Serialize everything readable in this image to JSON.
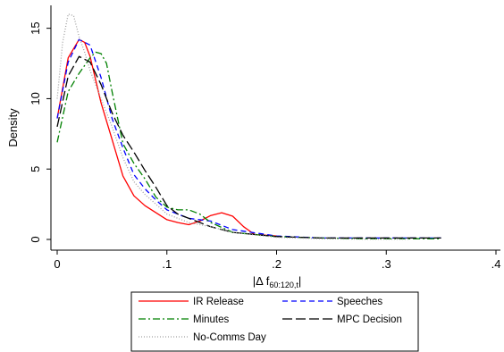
{
  "chart_data": {
    "type": "line",
    "title": "",
    "xlabel": "|Δ f",
    "xlabel_subscript": "60:120,t",
    "xlabel_close": "|",
    "ylabel": "Density",
    "xlim": [
      0,
      0.4
    ],
    "ylim": [
      0,
      16.5
    ],
    "xticks": [
      0,
      0.1,
      0.2,
      0.3,
      0.4
    ],
    "xtick_labels": [
      "0",
      ".1",
      ".2",
      ".3",
      ".4"
    ],
    "yticks": [
      0,
      5,
      10,
      15
    ],
    "ytick_labels": [
      "0",
      "5",
      "10",
      "15"
    ],
    "grid": false,
    "legend_position": "bottom",
    "series": [
      {
        "name": "IR Release",
        "color": "#ff0000",
        "dash": "solid",
        "x": [
          0.0,
          0.01,
          0.02,
          0.025,
          0.03,
          0.04,
          0.05,
          0.06,
          0.07,
          0.08,
          0.09,
          0.1,
          0.11,
          0.12,
          0.13,
          0.14,
          0.15,
          0.16,
          0.17,
          0.18,
          0.19,
          0.2
        ],
        "y": [
          8.6,
          12.9,
          14.2,
          14.0,
          13.0,
          9.7,
          7.1,
          4.5,
          3.1,
          2.4,
          1.9,
          1.4,
          1.2,
          1.05,
          1.3,
          1.7,
          1.9,
          1.65,
          0.9,
          0.35,
          0.3,
          0.25
        ]
      },
      {
        "name": "Speeches",
        "color": "#0000ff",
        "dash": "dash",
        "x": [
          0.0,
          0.01,
          0.02,
          0.03,
          0.04,
          0.05,
          0.06,
          0.07,
          0.08,
          0.09,
          0.1,
          0.12,
          0.14,
          0.16,
          0.2,
          0.24,
          0.28,
          0.32,
          0.35
        ],
        "y": [
          8.6,
          12.6,
          14.2,
          13.8,
          11.5,
          8.6,
          6.5,
          4.6,
          3.6,
          2.8,
          2.1,
          1.5,
          1.3,
          0.7,
          0.25,
          0.1,
          0.1,
          0.1,
          0.1
        ]
      },
      {
        "name": "Minutes",
        "color": "#008000",
        "dash": "dashdot",
        "x": [
          0.0,
          0.01,
          0.02,
          0.03,
          0.035,
          0.04,
          0.045,
          0.05,
          0.06,
          0.07,
          0.08,
          0.09,
          0.1,
          0.11,
          0.12,
          0.13,
          0.14,
          0.16,
          0.2,
          0.24,
          0.28,
          0.32,
          0.35
        ],
        "y": [
          6.9,
          10.5,
          11.8,
          12.9,
          13.3,
          13.2,
          12.5,
          10.5,
          6.8,
          5.4,
          4.3,
          3.0,
          2.3,
          2.1,
          2.1,
          1.8,
          1.2,
          0.5,
          0.2,
          0.1,
          0.05,
          0.05,
          0.05
        ]
      },
      {
        "name": "MPC Decision",
        "color": "#000000",
        "dash": "longdash",
        "x": [
          0.0,
          0.01,
          0.02,
          0.03,
          0.04,
          0.05,
          0.06,
          0.07,
          0.08,
          0.09,
          0.1,
          0.11,
          0.12,
          0.14,
          0.16,
          0.2,
          0.24,
          0.28,
          0.32,
          0.35
        ],
        "y": [
          8.0,
          11.6,
          13.0,
          12.6,
          11.0,
          9.0,
          7.4,
          6.2,
          4.9,
          3.7,
          2.4,
          1.8,
          1.5,
          0.9,
          0.5,
          0.2,
          0.1,
          0.1,
          0.1,
          0.1
        ]
      },
      {
        "name": "No-Comms Day",
        "color": "#a0a0a0",
        "dash": "dot",
        "x": [
          0.0,
          0.005,
          0.01,
          0.015,
          0.02,
          0.025,
          0.03,
          0.04,
          0.05,
          0.06,
          0.07,
          0.08,
          0.09,
          0.1,
          0.12,
          0.14,
          0.16,
          0.2,
          0.24,
          0.28,
          0.32
        ],
        "y": [
          10.0,
          14.0,
          16.0,
          15.9,
          14.4,
          13.3,
          12.0,
          10.0,
          8.0,
          5.8,
          4.1,
          3.2,
          2.5,
          1.8,
          1.2,
          0.9,
          0.5,
          0.15,
          0.05,
          0.02,
          0.02
        ]
      }
    ]
  }
}
